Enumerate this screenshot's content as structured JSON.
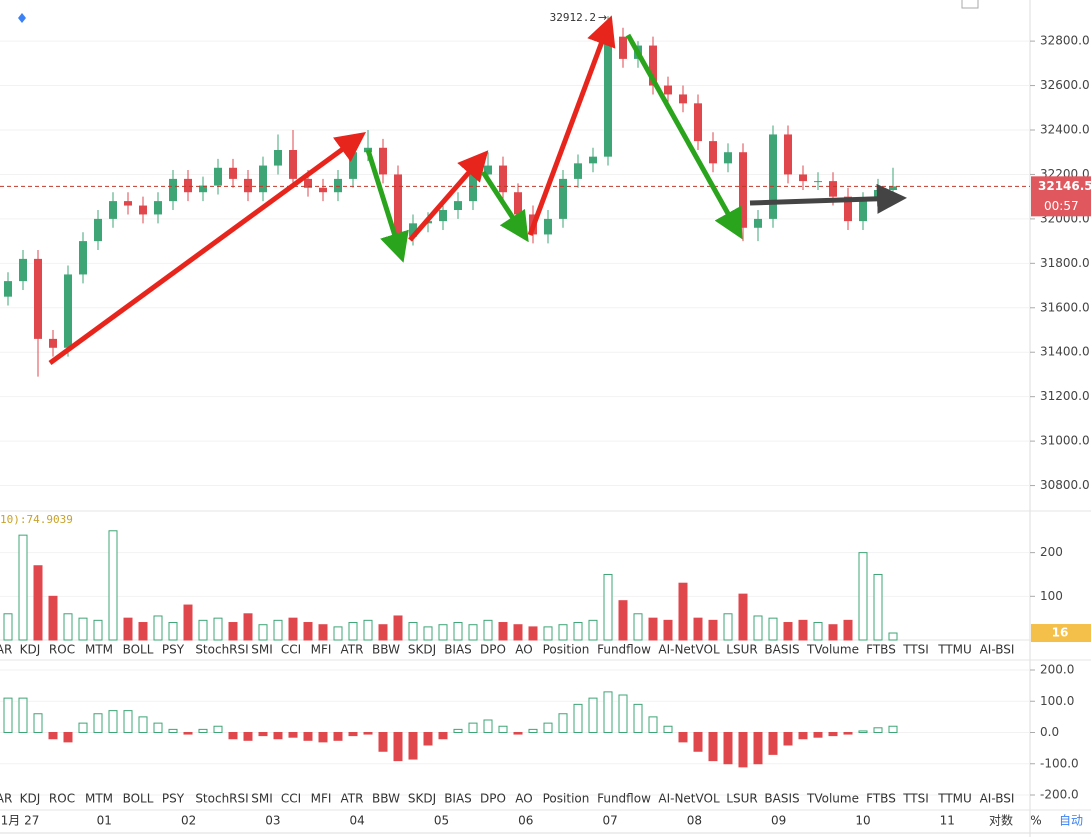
{
  "chart_data": [
    {
      "type": "candlestick",
      "open": [
        31650,
        31720,
        31820,
        31460,
        31420,
        31750,
        31900,
        32000,
        32080,
        32060,
        32020,
        32080,
        32180,
        32120,
        32150,
        32230,
        32180,
        32120,
        32240,
        32310,
        32180,
        32140,
        32120,
        32180,
        32300,
        32320,
        32200,
        31920,
        31980,
        31990,
        32040,
        32080,
        32200,
        32240,
        32120,
        32020,
        31930,
        32000,
        32180,
        32250,
        32280,
        32820,
        32720,
        32780,
        32600,
        32560,
        32520,
        32350,
        32250,
        32300,
        31960,
        32000,
        32380,
        32200,
        32170,
        32170,
        32100,
        31990,
        32080,
        32130
      ],
      "high": [
        31760,
        31860,
        31860,
        31500,
        31790,
        31940,
        32040,
        32120,
        32120,
        32100,
        32120,
        32220,
        32220,
        32190,
        32270,
        32270,
        32220,
        32280,
        32380,
        32400,
        32220,
        32180,
        32220,
        32340,
        32400,
        32360,
        32240,
        32020,
        32030,
        32080,
        32120,
        32240,
        32300,
        32280,
        32160,
        32060,
        32040,
        32220,
        32290,
        32320,
        32912.2,
        32860,
        32800,
        32820,
        32640,
        32600,
        32560,
        32390,
        32340,
        32340,
        32040,
        32420,
        32420,
        32240,
        32210,
        32210,
        32140,
        32120,
        32180,
        32230
      ],
      "low": [
        31610,
        31680,
        31290,
        31380,
        31380,
        31710,
        31860,
        31960,
        32020,
        31980,
        31980,
        32040,
        32080,
        32080,
        32110,
        32140,
        32080,
        32080,
        32200,
        32140,
        32100,
        32080,
        32080,
        32140,
        32260,
        32160,
        31880,
        31880,
        31940,
        31950,
        32000,
        32040,
        32160,
        32080,
        31980,
        31890,
        31890,
        31960,
        32140,
        32210,
        32240,
        32680,
        32680,
        32560,
        32520,
        32480,
        32310,
        32210,
        32210,
        31900,
        31900,
        31960,
        32160,
        32130,
        32130,
        32060,
        31950,
        31950,
        32040,
        32090
      ],
      "close": [
        31720,
        31820,
        31460,
        31420,
        31750,
        31900,
        32000,
        32080,
        32060,
        32020,
        32080,
        32180,
        32120,
        32150,
        32230,
        32180,
        32120,
        32240,
        32310,
        32180,
        32140,
        32120,
        32180,
        32300,
        32320,
        32200,
        31920,
        31980,
        31990,
        32040,
        32080,
        32200,
        32240,
        32120,
        32020,
        31930,
        32000,
        32180,
        32250,
        32280,
        32820,
        32720,
        32780,
        32600,
        32560,
        32520,
        32350,
        32250,
        32300,
        31960,
        32000,
        32380,
        32200,
        32170,
        32170,
        32100,
        31990,
        32080,
        32130,
        32146.5
      ],
      "up_color": "#3ea576",
      "down_color": "#e0474c",
      "ylim": [
        30690,
        32985
      ],
      "yticks": [
        {
          "value": 30800,
          "label": "30800.0"
        },
        {
          "value": 31000,
          "label": "31000.0"
        },
        {
          "value": 31200,
          "label": "31200.0"
        },
        {
          "value": 31400,
          "label": "31400.0"
        },
        {
          "value": 31600,
          "label": "31600.0"
        },
        {
          "value": 31800,
          "label": "31800.0"
        },
        {
          "value": 32000,
          "label": "32000.0"
        },
        {
          "value": 32200,
          "label": "32200.0"
        },
        {
          "value": 32400,
          "label": "32400.0"
        },
        {
          "value": 32600,
          "label": "32600.0"
        },
        {
          "value": 32800,
          "label": "32800.0"
        }
      ],
      "countdown": "00:57",
      "xtick_labels": [
        "1月 27",
        "01",
        "02",
        "03",
        "04",
        "05",
        "06",
        "07",
        "08",
        "09",
        "10",
        "11"
      ]
    },
    {
      "type": "bar",
      "header": "10):74.9039",
      "values": [
        60,
        240,
        170,
        100,
        60,
        50,
        45,
        250,
        50,
        40,
        55,
        40,
        80,
        45,
        50,
        40,
        60,
        35,
        45,
        50,
        40,
        35,
        30,
        40,
        45,
        35,
        55,
        40,
        30,
        35,
        40,
        35,
        45,
        40,
        35,
        30,
        30,
        35,
        40,
        45,
        150,
        90,
        60,
        50,
        45,
        130,
        50,
        45,
        60,
        105,
        55,
        50,
        40,
        45,
        40,
        35,
        45,
        200,
        150,
        16
      ],
      "ylim": [
        0,
        293
      ],
      "yticks": [
        100,
        200
      ]
    },
    {
      "type": "bar",
      "values": [
        110,
        110,
        60,
        -20,
        -30,
        30,
        60,
        70,
        70,
        50,
        30,
        10,
        -5,
        10,
        20,
        -20,
        -25,
        -10,
        -20,
        -15,
        -25,
        -30,
        -25,
        -10,
        -5,
        -60,
        -90,
        -85,
        -40,
        -20,
        10,
        30,
        40,
        20,
        -5,
        10,
        30,
        60,
        90,
        110,
        130,
        120,
        90,
        50,
        20,
        -30,
        -60,
        -90,
        -100,
        -110,
        -100,
        -70,
        -40,
        -20,
        -15,
        -10,
        -5,
        5,
        15,
        20
      ],
      "ylim": [
        -232,
        232
      ],
      "yticks": [
        {
          "value": -200,
          "label": "-200.0"
        },
        {
          "value": -100,
          "label": "-100.0"
        },
        {
          "value": 0,
          "label": "0.0"
        },
        {
          "value": 100,
          "label": "100.0"
        },
        {
          "value": 200,
          "label": "200.0"
        }
      ]
    }
  ],
  "indicator_tabs": [
    "AR",
    "KDJ",
    "ROC",
    "MTM",
    "BOLL",
    "PSY",
    "StochRSI",
    "SMI",
    "CCI",
    "MFI",
    "ATR",
    "BBW",
    "SKDJ",
    "BIAS",
    "DPO",
    "AO",
    "Position",
    "Fundflow",
    "AI-NetVOL",
    "LSUR",
    "BASIS",
    "TVolume",
    "FTBS",
    "TTSI",
    "TTMU",
    "AI-BSI"
  ],
  "footer": {
    "log": "对数",
    "percent": "%",
    "auto": "自动"
  }
}
